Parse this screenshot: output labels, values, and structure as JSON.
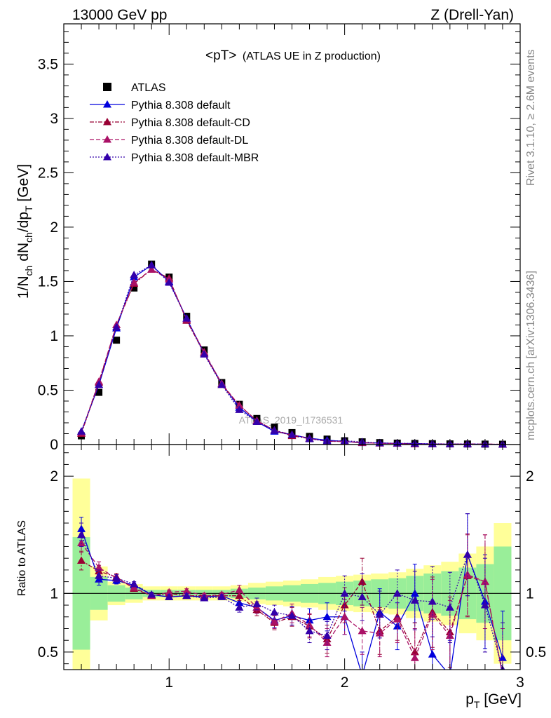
{
  "header": {
    "left": "13000 GeV pp",
    "right": "Z (Drell-Yan)"
  },
  "side_labels": {
    "rivet": "Rivet 3.1.10, ≥ 2.6M events",
    "mcplots": "mcplots.cern.ch [arXiv:1306.3436]"
  },
  "watermark": "ATLAS_2019_I1736531",
  "colors": {
    "data": "#000000",
    "default": "#0000dd",
    "cd": "#990033",
    "dl": "#aa1166",
    "mbr": "#3300aa",
    "band_inner": "#99ee99",
    "band_outer": "#ffff99"
  },
  "chart_data": [
    {
      "type": "line",
      "title_main": "<pT>",
      "title_sub": "(ATLAS UE in Z production)",
      "ylabel": "1/N_ch dN_ch/dp_T [GeV]",
      "ylim": [
        0,
        3.87
      ],
      "xlim": [
        0.4,
        3.0
      ],
      "yticks": [
        "0",
        "0.5",
        "1",
        "1.5",
        "2",
        "2.5",
        "3",
        "3.5"
      ],
      "legend_placement": "top-left",
      "x": [
        0.5,
        0.6,
        0.7,
        0.8,
        0.9,
        1.0,
        1.1,
        1.2,
        1.3,
        1.4,
        1.5,
        1.6,
        1.7,
        1.8,
        1.9,
        2.0,
        2.1,
        2.2,
        2.3,
        2.4,
        2.5,
        2.6,
        2.7,
        2.8,
        2.9
      ],
      "series": [
        {
          "name": "ATLAS",
          "key": "data",
          "marker": "square",
          "values": [
            0.08,
            0.48,
            0.96,
            1.44,
            1.66,
            1.54,
            1.18,
            0.87,
            0.57,
            0.37,
            0.24,
            0.16,
            0.11,
            0.075,
            0.05,
            0.035,
            0.025,
            0.018,
            0.013,
            0.01,
            0.008,
            0.006,
            0.005,
            0.004,
            0.003
          ]
        },
        {
          "name": "Pythia 8.308 default",
          "key": "default",
          "style": "solid",
          "values": [
            0.12,
            0.55,
            1.07,
            1.54,
            1.65,
            1.5,
            1.16,
            0.84,
            0.56,
            0.34,
            0.21,
            0.12,
            0.09,
            0.058,
            0.04,
            0.028,
            0.015,
            0.015,
            0.009,
            0.01,
            0.004,
            0.003,
            0.003,
            0.004,
            0.001
          ]
        },
        {
          "name": "Pythia 8.308 default-CD",
          "key": "cd",
          "style": "dashdot",
          "values": [
            0.1,
            0.57,
            1.1,
            1.48,
            1.61,
            1.53,
            1.14,
            0.84,
            0.55,
            0.36,
            0.22,
            0.13,
            0.08,
            0.055,
            0.03,
            0.028,
            0.017,
            0.012,
            0.01,
            0.005,
            0.006,
            0.004,
            0.006,
            0.004,
            0.002
          ]
        },
        {
          "name": "Pythia 8.308 default-DL",
          "key": "dl",
          "style": "dashed",
          "values": [
            0.11,
            0.58,
            1.1,
            1.49,
            1.61,
            1.52,
            1.15,
            0.85,
            0.56,
            0.36,
            0.22,
            0.13,
            0.09,
            0.055,
            0.031,
            0.028,
            0.018,
            0.011,
            0.01,
            0.005,
            0.006,
            0.004,
            0.005,
            0.004,
            0.002
          ]
        },
        {
          "name": "Pythia 8.308 default-MBR",
          "key": "mbr",
          "style": "dotted",
          "values": [
            0.12,
            0.55,
            1.08,
            1.56,
            1.65,
            1.49,
            1.16,
            0.83,
            0.55,
            0.32,
            0.21,
            0.13,
            0.09,
            0.051,
            0.032,
            0.035,
            0.024,
            0.014,
            0.012,
            0.009,
            0.007,
            0.005,
            0.006,
            0.003,
            0.002
          ]
        }
      ]
    },
    {
      "type": "line",
      "ylabel": "Ratio to ATLAS",
      "xlabel": "p_T [GeV]",
      "xlim": [
        0.4,
        3.0
      ],
      "ylim": [
        0.35,
        2.27
      ],
      "xticks": [
        "1",
        "2",
        "3"
      ],
      "yticks": [
        "0.5",
        "1",
        "2"
      ],
      "reference_line": 1,
      "x": [
        0.5,
        0.6,
        0.7,
        0.8,
        0.9,
        1.0,
        1.1,
        1.2,
        1.3,
        1.4,
        1.5,
        1.6,
        1.7,
        1.8,
        1.9,
        2.0,
        2.1,
        2.2,
        2.3,
        2.4,
        2.5,
        2.6,
        2.7,
        2.8,
        2.9
      ],
      "band_inner": [
        [
          0.52,
          1.48
        ],
        [
          0.86,
          1.14
        ],
        [
          0.93,
          1.07
        ],
        [
          0.95,
          1.05
        ],
        [
          0.97,
          1.03
        ],
        [
          0.97,
          1.03
        ],
        [
          0.97,
          1.03
        ],
        [
          0.97,
          1.03
        ],
        [
          0.97,
          1.03
        ],
        [
          0.96,
          1.04
        ],
        [
          0.95,
          1.05
        ],
        [
          0.94,
          1.06
        ],
        [
          0.93,
          1.07
        ],
        [
          0.92,
          1.08
        ],
        [
          0.91,
          1.09
        ],
        [
          0.9,
          1.1
        ],
        [
          0.89,
          1.11
        ],
        [
          0.88,
          1.12
        ],
        [
          0.87,
          1.13
        ],
        [
          0.85,
          1.15
        ],
        [
          0.83,
          1.17
        ],
        [
          0.81,
          1.19
        ],
        [
          0.78,
          1.22
        ],
        [
          0.75,
          1.25
        ],
        [
          0.6,
          1.4
        ]
      ],
      "band_outer": [
        [
          0.3,
          1.98
        ],
        [
          0.77,
          1.23
        ],
        [
          0.9,
          1.1
        ],
        [
          0.92,
          1.08
        ],
        [
          0.94,
          1.06
        ],
        [
          0.94,
          1.06
        ],
        [
          0.94,
          1.06
        ],
        [
          0.94,
          1.06
        ],
        [
          0.94,
          1.06
        ],
        [
          0.93,
          1.07
        ],
        [
          0.91,
          1.09
        ],
        [
          0.9,
          1.1
        ],
        [
          0.89,
          1.11
        ],
        [
          0.88,
          1.12
        ],
        [
          0.86,
          1.14
        ],
        [
          0.85,
          1.15
        ],
        [
          0.84,
          1.16
        ],
        [
          0.83,
          1.17
        ],
        [
          0.82,
          1.18
        ],
        [
          0.79,
          1.21
        ],
        [
          0.76,
          1.24
        ],
        [
          0.73,
          1.27
        ],
        [
          0.66,
          1.34
        ],
        [
          0.6,
          1.4
        ],
        [
          0.4,
          1.6
        ]
      ],
      "series": [
        {
          "name": "Pythia 8.308 default",
          "key": "default",
          "style": "solid",
          "values": [
            1.55,
            1.12,
            1.11,
            1.07,
            0.99,
            0.97,
            0.98,
            0.97,
            0.98,
            0.92,
            0.88,
            0.77,
            0.81,
            0.77,
            0.8,
            0.8,
            0.3,
            0.84,
            0.72,
            1.0,
            0.48,
            0.3,
            1.33,
            0.93,
            0.45
          ],
          "err": [
            0.1,
            0.05,
            0.03,
            0.02,
            0.02,
            0.02,
            0.02,
            0.02,
            0.02,
            0.04,
            0.05,
            0.06,
            0.08,
            0.1,
            0.12,
            0.15,
            0.2,
            0.2,
            0.2,
            0.25,
            0.3,
            0.3,
            0.35,
            0.4,
            0.4
          ]
        },
        {
          "name": "Pythia 8.308 default-CD",
          "key": "cd",
          "style": "dashdot",
          "values": [
            1.28,
            1.19,
            1.14,
            1.04,
            0.98,
            1.0,
            0.98,
            0.98,
            0.98,
            0.98,
            0.86,
            0.75,
            0.8,
            0.72,
            0.61,
            0.9,
            1.1,
            0.68,
            0.8,
            0.5,
            0.84,
            0.67,
            1.15,
            1.1,
            0.3
          ],
          "err": [
            0.08,
            0.05,
            0.03,
            0.02,
            0.02,
            0.02,
            0.02,
            0.02,
            0.02,
            0.04,
            0.05,
            0.06,
            0.08,
            0.1,
            0.12,
            0.15,
            0.2,
            0.2,
            0.2,
            0.25,
            0.3,
            0.3,
            0.35,
            0.4,
            0.4
          ]
        },
        {
          "name": "Pythia 8.308 default-DL",
          "key": "dl",
          "style": "dashed",
          "values": [
            1.43,
            1.22,
            1.13,
            1.05,
            0.98,
            1.01,
            1.02,
            0.98,
            0.99,
            1.03,
            0.88,
            0.76,
            0.83,
            0.73,
            0.58,
            0.8,
            0.68,
            0.66,
            0.78,
            0.45,
            0.82,
            0.64,
            1.16,
            1.1,
            0.3
          ],
          "err": [
            0.08,
            0.05,
            0.03,
            0.02,
            0.02,
            0.02,
            0.02,
            0.02,
            0.02,
            0.04,
            0.05,
            0.06,
            0.08,
            0.1,
            0.12,
            0.15,
            0.2,
            0.2,
            0.2,
            0.25,
            0.3,
            0.3,
            0.35,
            0.4,
            0.4
          ]
        },
        {
          "name": "Pythia 8.308 default-MBR",
          "key": "mbr",
          "style": "dotted",
          "values": [
            1.5,
            1.15,
            1.13,
            1.08,
            0.99,
            0.97,
            0.98,
            0.96,
            0.97,
            0.88,
            0.91,
            0.84,
            0.81,
            0.68,
            0.64,
            1.0,
            0.97,
            0.82,
            1.0,
            0.94,
            0.93,
            0.88,
            1.33,
            0.9,
            0.35
          ],
          "err": [
            0.1,
            0.05,
            0.03,
            0.02,
            0.02,
            0.02,
            0.02,
            0.02,
            0.02,
            0.04,
            0.05,
            0.06,
            0.08,
            0.1,
            0.12,
            0.15,
            0.2,
            0.2,
            0.2,
            0.25,
            0.3,
            0.3,
            0.35,
            0.4,
            0.4
          ]
        }
      ]
    }
  ]
}
